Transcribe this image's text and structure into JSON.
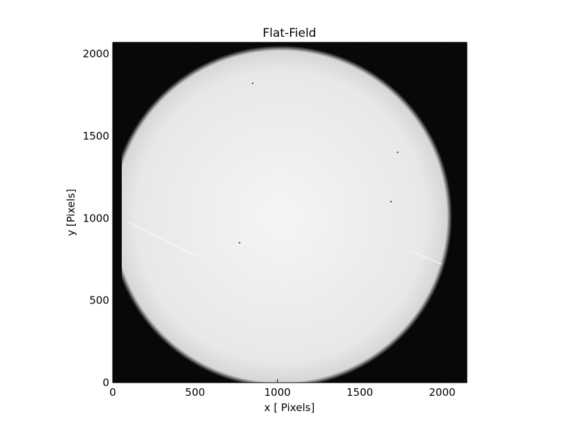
{
  "chart_data": {
    "type": "heatmap",
    "title": "Flat-Field",
    "xlabel": "x [ Pixels]",
    "ylabel": "y [Pixels]",
    "xlim": [
      0,
      2150
    ],
    "ylim": [
      0,
      2070
    ],
    "xticks": [
      0,
      500,
      1000,
      1500,
      2000
    ],
    "yticks": [
      0,
      500,
      1000,
      1500,
      2000
    ],
    "colormap": "gray",
    "grid": false,
    "field": {
      "center": [
        1020,
        1010
      ],
      "radius": 1040,
      "clip_x_min": 55,
      "center_value": 0.96,
      "rim_value": 0.84,
      "background_value": 0.03
    },
    "artifacts": {
      "dark_specks": [
        [
          1730,
          1400
        ],
        [
          1690,
          1100
        ],
        [
          850,
          1820
        ],
        [
          770,
          850
        ]
      ],
      "bright_streaks": [
        [
          [
            90,
            980
          ],
          [
            510,
            770
          ]
        ],
        [
          [
            1810,
            800
          ],
          [
            2000,
            720
          ]
        ]
      ]
    }
  }
}
